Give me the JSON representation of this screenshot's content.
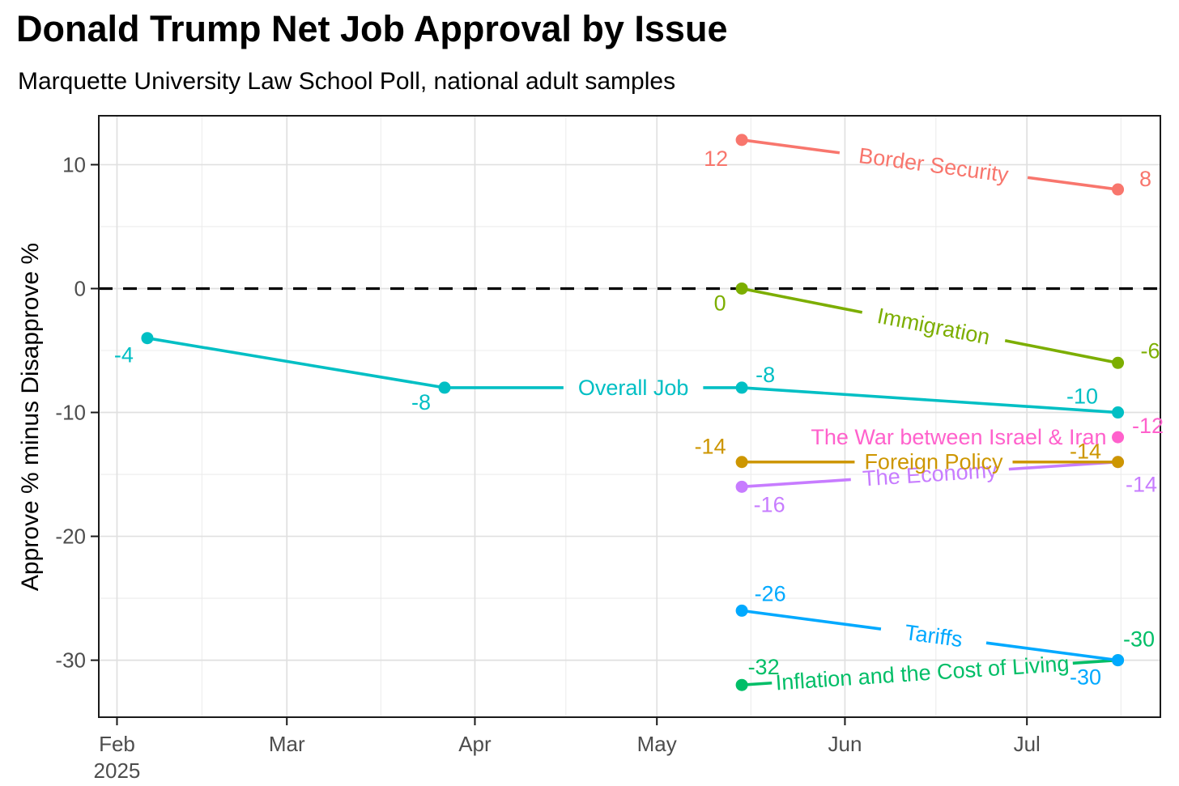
{
  "header": {
    "title": "Donald Trump Net Job Approval by Issue",
    "subtitle": "Marquette University Law School Poll, national adult samples"
  },
  "chart_data": {
    "type": "line",
    "title": "Donald Trump Net Job Approval by Issue",
    "subtitle": "Marquette University Law School Poll, national adult samples",
    "xlabel": "",
    "ylabel": "Approve % minus Disapprove %",
    "xlim": [
      "2025-01-29",
      "2025-07-23"
    ],
    "ylim": [
      -34.6,
      13.95
    ],
    "grid": "on",
    "legend": "none - series labeled inline on lines",
    "axis_text_color": "#4D4D4D",
    "zero_reference_line": {
      "y": 0,
      "style": "dashed",
      "color": "#000000"
    },
    "x_ticks": [
      {
        "date": "2025-02-01",
        "label": "Feb",
        "sublabel": "2025"
      },
      {
        "date": "2025-03-01",
        "label": "Mar"
      },
      {
        "date": "2025-04-01",
        "label": "Apr"
      },
      {
        "date": "2025-05-01",
        "label": "May"
      },
      {
        "date": "2025-06-01",
        "label": "Jun"
      },
      {
        "date": "2025-07-01",
        "label": "Jul"
      }
    ],
    "y_ticks": [
      10,
      0,
      -10,
      -20,
      -30
    ],
    "y_minor_ticks": [
      5,
      -5,
      -15,
      -25
    ],
    "series": [
      {
        "name": "Border Security",
        "color": "#F8766D",
        "points": [
          {
            "date": "2025-05-15",
            "value": 12,
            "label": "12",
            "label_offset": [
              -32,
              23
            ]
          },
          {
            "date": "2025-07-16",
            "value": 8,
            "label": "8",
            "label_offset": [
              34,
              -13
            ]
          }
        ],
        "line_label": {
          "text": "Border Security",
          "segment": 0,
          "gap": [
            0.26,
            0.76
          ]
        }
      },
      {
        "name": "Immigration",
        "color": "#7CAE00",
        "points": [
          {
            "date": "2025-05-15",
            "value": 0,
            "label": "0",
            "label_offset": [
              -27,
              18
            ]
          },
          {
            "date": "2025-07-16",
            "value": -6,
            "label": "-6",
            "label_offset": [
              40,
              -15
            ]
          }
        ],
        "line_label": {
          "text": "Immigration",
          "segment": 0,
          "gap": [
            0.32,
            0.7
          ]
        }
      },
      {
        "name": "Overall Job",
        "color": "#00BFC4",
        "points": [
          {
            "date": "2025-02-06",
            "value": -4,
            "label": "-4",
            "label_offset": [
              -29,
              21
            ]
          },
          {
            "date": "2025-03-27",
            "value": -8,
            "label": "-8",
            "label_offset": [
              -29,
              18
            ]
          },
          {
            "date": "2025-05-15",
            "value": -8,
            "label": "-8",
            "label_offset": [
              29,
              -16
            ]
          },
          {
            "date": "2025-07-16",
            "value": -10,
            "label": "-10",
            "label_offset": [
              -44,
              -20
            ]
          }
        ],
        "line_label": {
          "text": "Overall Job",
          "segment": 1,
          "gap": [
            0.4,
            0.87
          ]
        }
      },
      {
        "name": "The Economy",
        "color": "#C77CFF",
        "points": [
          {
            "date": "2025-05-15",
            "value": -16,
            "label": "-16",
            "label_offset": [
              34,
              22
            ]
          },
          {
            "date": "2025-07-16",
            "value": -14,
            "label": "-14",
            "label_offset": [
              29,
              28
            ]
          }
        ],
        "line_label": {
          "text": "The Economy",
          "segment": 0,
          "gap": [
            0.29,
            0.71
          ]
        }
      },
      {
        "name": "Foreign Policy",
        "color": "#CD9600",
        "points": [
          {
            "date": "2025-05-15",
            "value": -14,
            "label": "-14",
            "label_offset": [
              -39,
              -19
            ]
          },
          {
            "date": "2025-07-16",
            "value": -14,
            "label": "-14",
            "label_offset": [
              -40,
              -13
            ]
          }
        ],
        "line_label": {
          "text": "Foreign Policy",
          "segment": 0,
          "gap": [
            0.3,
            0.72
          ]
        }
      },
      {
        "name": "The War between Israel & Iran",
        "color": "#FF61CC",
        "points": [
          {
            "date": "2025-07-16",
            "value": -12,
            "label": "-12",
            "label_offset": [
              37,
              -14
            ]
          }
        ],
        "line_label": {
          "text": "The War between Israel & Iran",
          "anchor": "left-of-point",
          "point": 0,
          "dx": -14
        }
      },
      {
        "name": "Inflation and the Cost of Living",
        "color": "#00BE67",
        "points": [
          {
            "date": "2025-05-15",
            "value": -32,
            "label": "-32",
            "label_offset": [
              27,
              -22
            ]
          },
          {
            "date": "2025-07-16",
            "value": -30,
            "label": "-30",
            "label_offset": [
              26,
              -26
            ]
          }
        ],
        "line_label": {
          "text": "Inflation and the Cost of Living",
          "segment": 0,
          "gap": [
            0.08,
            0.88
          ]
        }
      },
      {
        "name": "Tariffs",
        "color": "#00A9FF",
        "points": [
          {
            "date": "2025-05-15",
            "value": -26,
            "label": "-26",
            "label_offset": [
              35,
              -21
            ]
          },
          {
            "date": "2025-07-16",
            "value": -30,
            "label": "-30",
            "label_offset": [
              -40,
              21
            ]
          }
        ],
        "line_label": {
          "text": "Tariffs",
          "segment": 0,
          "gap": [
            0.37,
            0.65
          ]
        }
      }
    ]
  }
}
